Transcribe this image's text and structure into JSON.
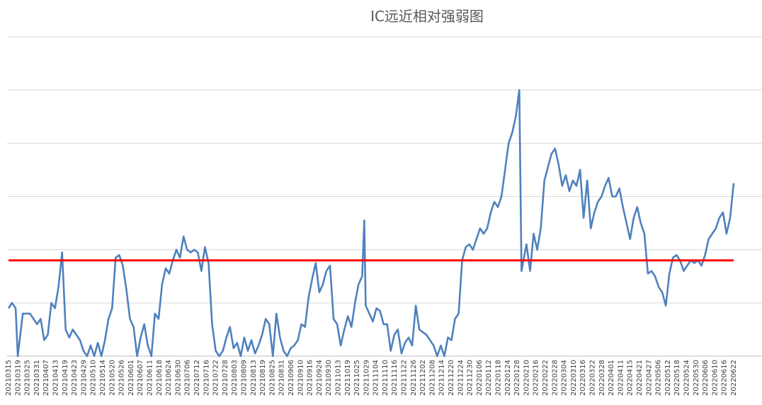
{
  "chart_data": {
    "type": "line",
    "title": "IC远近相对强弱图",
    "xlabel": "",
    "ylabel": "",
    "ylim": [
      0,
      6
    ],
    "y_axis_labels_shown": false,
    "grid": "horizontal",
    "legend": "none",
    "x_tick_labels": [
      "20210315",
      "20210319",
      "20210325",
      "20210331",
      "20210407",
      "20210413",
      "20210419",
      "20210423",
      "20210429",
      "20210510",
      "20210514",
      "20210520",
      "20210526",
      "20210601",
      "20210607",
      "20210611",
      "20210618",
      "20210624",
      "20210630",
      "20210706",
      "20210712",
      "20210716",
      "20210722",
      "20210728",
      "20210803",
      "20210809",
      "20210813",
      "20210819",
      "20210825",
      "20210831",
      "20210906",
      "20210910",
      "20210916",
      "20210924",
      "20210930",
      "20211013",
      "20211019",
      "20211025",
      "20211029",
      "20211104",
      "20211110",
      "20211116",
      "20211122",
      "20211126",
      "20211202",
      "20211208",
      "20211214",
      "20211220",
      "20211224",
      "20211230",
      "20220106",
      "20220112",
      "20220118",
      "20220124",
      "20220128",
      "20220210",
      "20220216",
      "20220222",
      "20220228",
      "20220304",
      "20220310",
      "20220316",
      "20220322",
      "20220328",
      "20220401",
      "20220411",
      "20220415",
      "20220421",
      "20220427",
      "20220506",
      "20220512",
      "20220518",
      "20220524",
      "20220530",
      "20220606",
      "20220610",
      "20220616",
      "20220622"
    ],
    "threshold": {
      "value": 1.8,
      "color": "#ff0000"
    },
    "series": [
      {
        "color": "#4f81bd",
        "points": [
          [
            0,
            0.9
          ],
          [
            0.5,
            1.0
          ],
          [
            1,
            0.9
          ],
          [
            1.3,
            0.0
          ],
          [
            2,
            0.8
          ],
          [
            3,
            0.8
          ],
          [
            3.5,
            0.7
          ],
          [
            4,
            0.6
          ],
          [
            4.5,
            0.7
          ],
          [
            5,
            0.3
          ],
          [
            5.5,
            0.4
          ],
          [
            6,
            1.0
          ],
          [
            6.5,
            0.9
          ],
          [
            7,
            1.3
          ],
          [
            7.5,
            1.95
          ],
          [
            8,
            0.5
          ],
          [
            8.5,
            0.35
          ],
          [
            9,
            0.5
          ],
          [
            9.5,
            0.4
          ],
          [
            10,
            0.3
          ],
          [
            10.5,
            0.1
          ],
          [
            11,
            0.0
          ],
          [
            11.5,
            0.2
          ],
          [
            12,
            0.0
          ],
          [
            12.5,
            0.25
          ],
          [
            13,
            0.0
          ],
          [
            13.5,
            0.3
          ],
          [
            14,
            0.7
          ],
          [
            14.5,
            0.9
          ],
          [
            15,
            1.85
          ],
          [
            15.5,
            1.9
          ],
          [
            16,
            1.7
          ],
          [
            16.5,
            1.25
          ],
          [
            17,
            0.7
          ],
          [
            17.5,
            0.55
          ],
          [
            18,
            0.0
          ],
          [
            18.5,
            0.35
          ],
          [
            19,
            0.6
          ],
          [
            19.5,
            0.2
          ],
          [
            20,
            0.0
          ],
          [
            20.5,
            0.8
          ],
          [
            21,
            0.7
          ],
          [
            21.5,
            1.35
          ],
          [
            22,
            1.65
          ],
          [
            22.5,
            1.55
          ],
          [
            23,
            1.8
          ],
          [
            23.5,
            2.0
          ],
          [
            24,
            1.85
          ],
          [
            24.5,
            2.25
          ],
          [
            25,
            2.0
          ],
          [
            25.5,
            1.95
          ],
          [
            26,
            2.0
          ],
          [
            26.5,
            1.95
          ],
          [
            27,
            1.6
          ],
          [
            27.5,
            2.05
          ],
          [
            28,
            1.75
          ],
          [
            28.5,
            0.6
          ],
          [
            29,
            0.1
          ],
          [
            29.5,
            0.0
          ],
          [
            30,
            0.1
          ],
          [
            30.5,
            0.35
          ],
          [
            31,
            0.55
          ],
          [
            31.5,
            0.15
          ],
          [
            32,
            0.25
          ],
          [
            32.5,
            0.0
          ],
          [
            33,
            0.35
          ],
          [
            33.5,
            0.1
          ],
          [
            34,
            0.3
          ],
          [
            34.5,
            0.05
          ],
          [
            35,
            0.2
          ],
          [
            35.5,
            0.4
          ],
          [
            36,
            0.7
          ],
          [
            36.5,
            0.6
          ],
          [
            37,
            0.0
          ],
          [
            37.5,
            0.8
          ],
          [
            38,
            0.35
          ],
          [
            38.5,
            0.1
          ],
          [
            39,
            0.0
          ],
          [
            39.5,
            0.15
          ],
          [
            40,
            0.2
          ],
          [
            40.5,
            0.3
          ],
          [
            41,
            0.6
          ],
          [
            41.5,
            0.55
          ],
          [
            42,
            1.1
          ],
          [
            42.5,
            1.45
          ],
          [
            43,
            1.75
          ],
          [
            43.5,
            1.2
          ],
          [
            44,
            1.35
          ],
          [
            44.5,
            1.6
          ],
          [
            45,
            1.7
          ],
          [
            45.5,
            0.7
          ],
          [
            46,
            0.6
          ],
          [
            46.5,
            0.2
          ],
          [
            47,
            0.5
          ],
          [
            47.5,
            0.75
          ],
          [
            48,
            0.55
          ],
          [
            48.5,
            1.0
          ],
          [
            49,
            1.35
          ],
          [
            49.5,
            1.5
          ],
          [
            49.8,
            2.55
          ],
          [
            50,
            0.95
          ],
          [
            50.5,
            0.8
          ],
          [
            51,
            0.65
          ],
          [
            51.5,
            0.9
          ],
          [
            52,
            0.85
          ],
          [
            52.5,
            0.6
          ],
          [
            53,
            0.6
          ],
          [
            53.5,
            0.1
          ],
          [
            54,
            0.4
          ],
          [
            54.5,
            0.5
          ],
          [
            55,
            0.05
          ],
          [
            55.5,
            0.25
          ],
          [
            56,
            0.35
          ],
          [
            56.5,
            0.2
          ],
          [
            57,
            0.95
          ],
          [
            57.5,
            0.5
          ],
          [
            58,
            0.45
          ],
          [
            58.5,
            0.4
          ],
          [
            59,
            0.3
          ],
          [
            59.5,
            0.2
          ],
          [
            60,
            0.0
          ],
          [
            60.5,
            0.2
          ],
          [
            61,
            0.0
          ],
          [
            61.5,
            0.35
          ],
          [
            62,
            0.3
          ],
          [
            62.5,
            0.7
          ],
          [
            63,
            0.8
          ],
          [
            63.5,
            1.8
          ],
          [
            64,
            2.05
          ],
          [
            64.5,
            2.1
          ],
          [
            65,
            2.0
          ],
          [
            65.5,
            2.2
          ],
          [
            66,
            2.4
          ],
          [
            66.5,
            2.3
          ],
          [
            67,
            2.4
          ],
          [
            67.5,
            2.7
          ],
          [
            68,
            2.9
          ],
          [
            68.5,
            2.8
          ],
          [
            69,
            3.0
          ],
          [
            69.5,
            3.5
          ],
          [
            70,
            4.0
          ],
          [
            70.5,
            4.2
          ],
          [
            71,
            4.5
          ],
          [
            71.5,
            5.0
          ],
          [
            71.8,
            1.6
          ],
          [
            72.5,
            2.1
          ],
          [
            73,
            1.6
          ],
          [
            73.5,
            2.3
          ],
          [
            74,
            2.0
          ],
          [
            74.5,
            2.4
          ],
          [
            75,
            3.3
          ],
          [
            75.5,
            3.55
          ],
          [
            76,
            3.8
          ],
          [
            76.5,
            3.9
          ],
          [
            77,
            3.6
          ],
          [
            77.5,
            3.2
          ],
          [
            78,
            3.4
          ],
          [
            78.5,
            3.1
          ],
          [
            79,
            3.3
          ],
          [
            79.5,
            3.2
          ],
          [
            80,
            3.5
          ],
          [
            80.5,
            2.6
          ],
          [
            81,
            3.3
          ],
          [
            81.5,
            2.4
          ],
          [
            82,
            2.7
          ],
          [
            82.5,
            2.9
          ],
          [
            83,
            3.0
          ],
          [
            83.5,
            3.2
          ],
          [
            84,
            3.35
          ],
          [
            84.5,
            3.0
          ],
          [
            85,
            3.0
          ],
          [
            85.5,
            3.15
          ],
          [
            86,
            2.8
          ],
          [
            86.5,
            2.5
          ],
          [
            87,
            2.2
          ],
          [
            87.5,
            2.6
          ],
          [
            88,
            2.8
          ],
          [
            88.5,
            2.5
          ],
          [
            89,
            2.3
          ],
          [
            89.5,
            1.55
          ],
          [
            90,
            1.6
          ],
          [
            90.5,
            1.5
          ],
          [
            91,
            1.3
          ],
          [
            91.5,
            1.2
          ],
          [
            92,
            0.95
          ],
          [
            92.5,
            1.55
          ],
          [
            93,
            1.85
          ],
          [
            93.5,
            1.9
          ],
          [
            94,
            1.8
          ],
          [
            94.5,
            1.6
          ],
          [
            95,
            1.7
          ],
          [
            95.5,
            1.8
          ],
          [
            96,
            1.75
          ],
          [
            96.5,
            1.8
          ],
          [
            97,
            1.7
          ],
          [
            97.5,
            1.9
          ],
          [
            98,
            2.2
          ],
          [
            98.5,
            2.3
          ],
          [
            99,
            2.4
          ],
          [
            99.5,
            2.6
          ],
          [
            100,
            2.7
          ],
          [
            100.5,
            2.3
          ],
          [
            101,
            2.6
          ],
          [
            101.5,
            3.25
          ]
        ]
      }
    ]
  }
}
